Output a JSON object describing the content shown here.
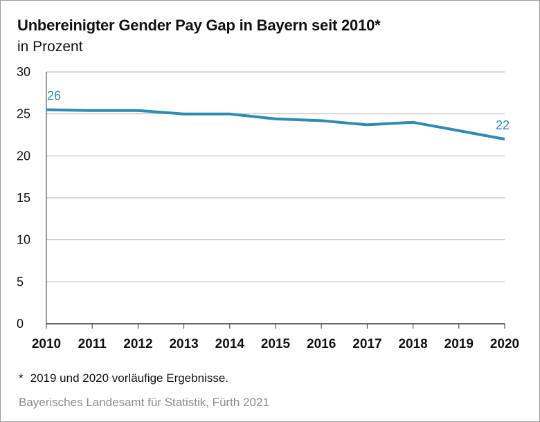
{
  "title": "Unbereinigter Gender Pay Gap in Bayern seit 2010*",
  "subtitle": "in Prozent",
  "footnote": {
    "marker": "*",
    "text": "2019 und 2020 vorläufige Ergebnisse."
  },
  "source": "Bayerisches Landesamt für Statistik, Fürth 2021",
  "colors": {
    "line": "#2e8bb3",
    "grid": "#b3b3b3",
    "axis": "#333333"
  },
  "chart_data": {
    "type": "line",
    "title": "Unbereinigter Gender Pay Gap in Bayern seit 2010*",
    "subtitle": "in Prozent",
    "xlabel": "",
    "ylabel": "",
    "x": [
      "2010",
      "2011",
      "2012",
      "2013",
      "2014",
      "2015",
      "2016",
      "2017",
      "2018",
      "2019",
      "2020"
    ],
    "series": [
      {
        "values": [
          25.5,
          25.4,
          25.4,
          25.0,
          25.0,
          24.4,
          24.2,
          23.7,
          24.0,
          23.0,
          22.0
        ]
      }
    ],
    "data_labels": [
      {
        "x": "2010",
        "text": "26"
      },
      {
        "x": "2020",
        "text": "22"
      }
    ],
    "ylim": [
      0,
      30
    ],
    "yticks": [
      "0",
      "5",
      "10",
      "15",
      "20",
      "25",
      "30"
    ],
    "grid": true,
    "legend": "none"
  }
}
